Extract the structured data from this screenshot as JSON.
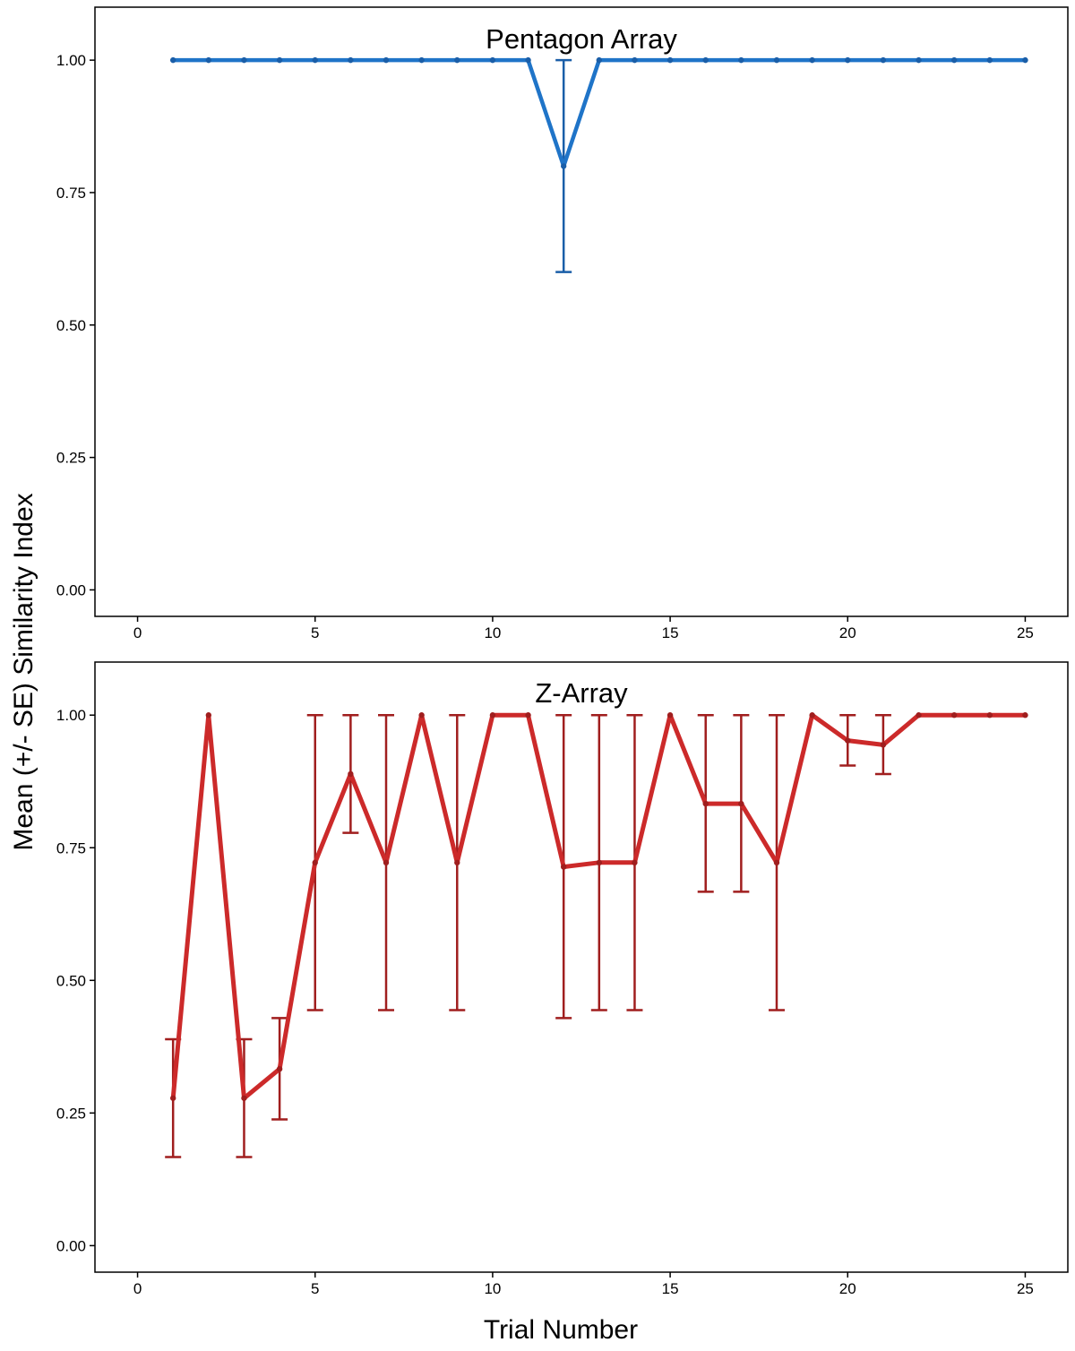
{
  "figure": {
    "ylabel": "Mean (+/- SE) Similarity Index",
    "xlabel": "Trial Number"
  },
  "chart_data": [
    {
      "type": "line",
      "title": "Pentagon Array",
      "xlabel": "",
      "ylabel": "Mean (+/- SE) Similarity Index",
      "xlim": [
        -1.2,
        26.2
      ],
      "ylim": [
        -0.05,
        1.1
      ],
      "xticks": [
        0,
        5,
        10,
        15,
        20,
        25
      ],
      "yticks": [
        0.0,
        0.25,
        0.5,
        0.75,
        1.0
      ],
      "xtick_labels": [
        "0",
        "5",
        "10",
        "15",
        "20",
        "25"
      ],
      "ytick_labels": [
        "0.00",
        "0.25",
        "0.50",
        "0.75",
        "1.00"
      ],
      "grid": false,
      "color": "#1f74c8",
      "errorbar_color": "#1a5ea8",
      "series": [
        {
          "x": [
            1,
            2,
            3,
            4,
            5,
            6,
            7,
            8,
            9,
            10,
            11,
            12,
            13,
            14,
            15,
            16,
            17,
            18,
            19,
            20,
            21,
            22,
            23,
            24,
            25
          ],
          "y": [
            1,
            1,
            1,
            1,
            1,
            1,
            1,
            1,
            1,
            1,
            1,
            0.8,
            1,
            1,
            1,
            1,
            1,
            1,
            1,
            1,
            1,
            1,
            1,
            1,
            1
          ],
          "err_low": [
            1,
            1,
            1,
            1,
            1,
            1,
            1,
            1,
            1,
            1,
            1,
            0.6,
            1,
            1,
            1,
            1,
            1,
            1,
            1,
            1,
            1,
            1,
            1,
            1,
            1
          ],
          "err_high": [
            1,
            1,
            1,
            1,
            1,
            1,
            1,
            1,
            1,
            1,
            1,
            1,
            1,
            1,
            1,
            1,
            1,
            1,
            1,
            1,
            1,
            1,
            1,
            1,
            1
          ]
        }
      ]
    },
    {
      "type": "line",
      "title": "Z-Array",
      "xlabel": "Trial Number",
      "ylabel": "Mean (+/- SE) Similarity Index",
      "xlim": [
        -1.2,
        26.2
      ],
      "ylim": [
        -0.05,
        1.1
      ],
      "xticks": [
        0,
        5,
        10,
        15,
        20,
        25
      ],
      "yticks": [
        0.0,
        0.25,
        0.5,
        0.75,
        1.0
      ],
      "xtick_labels": [
        "0",
        "5",
        "10",
        "15",
        "20",
        "25"
      ],
      "ytick_labels": [
        "0.00",
        "0.25",
        "0.50",
        "0.75",
        "1.00"
      ],
      "grid": false,
      "color": "#cc2a2a",
      "errorbar_color": "#a01e1e",
      "series": [
        {
          "x": [
            1,
            2,
            3,
            4,
            5,
            6,
            7,
            8,
            9,
            10,
            11,
            12,
            13,
            14,
            15,
            16,
            17,
            18,
            19,
            20,
            21,
            22,
            23,
            24,
            25
          ],
          "y": [
            0.278,
            1,
            0.278,
            0.333,
            0.722,
            0.889,
            0.722,
            1,
            0.722,
            1,
            1,
            0.714,
            0.722,
            0.722,
            1,
            0.833,
            0.833,
            0.722,
            1,
            0.952,
            0.944,
            1,
            1,
            1,
            1
          ],
          "err_low": [
            0.167,
            1,
            0.167,
            0.238,
            0.444,
            0.778,
            0.444,
            1,
            0.444,
            1,
            1,
            0.429,
            0.444,
            0.444,
            1,
            0.667,
            0.667,
            0.444,
            1,
            0.905,
            0.889,
            1,
            1,
            1,
            1
          ],
          "err_high": [
            0.389,
            1,
            0.389,
            0.429,
            1,
            1,
            1,
            1,
            1,
            1,
            1,
            1,
            1,
            1,
            1,
            1,
            1,
            1,
            1,
            1,
            1,
            1,
            1,
            1,
            1
          ]
        }
      ]
    }
  ]
}
